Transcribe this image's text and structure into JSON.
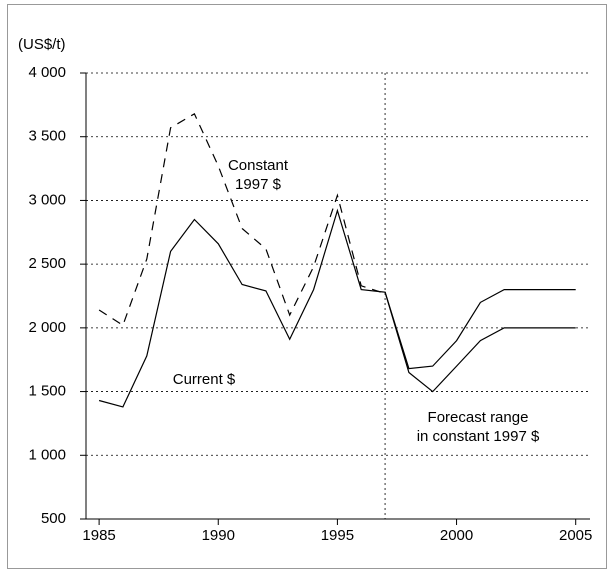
{
  "chart_data": {
    "type": "line",
    "y_unit": "(US$/t)",
    "x": [
      1985,
      1986,
      1987,
      1988,
      1989,
      1990,
      1991,
      1992,
      1993,
      1994,
      1995,
      1996,
      1997,
      1998,
      1999,
      2000,
      2001,
      2002,
      2003,
      2004,
      2005
    ],
    "series": [
      {
        "color": "#000",
        "dash": "solid",
        "values": [
          1430,
          1380,
          1780,
          2600,
          2850,
          2660,
          2340,
          2290,
          1910,
          2300,
          2920,
          2300,
          2280,
          1650,
          1500,
          1700,
          1900,
          2000,
          2000,
          2000,
          2000
        ]
      },
      {
        "color": "#000",
        "dash": "dashed",
        "values": [
          2140,
          2020,
          2540,
          3570,
          3680,
          3270,
          2780,
          2620,
          2100,
          2480,
          3040,
          2330,
          2270,
          null,
          null,
          null,
          null,
          null,
          null,
          null,
          null
        ]
      },
      {
        "color": "#000",
        "dash": "solid",
        "values": [
          null,
          null,
          null,
          null,
          null,
          null,
          null,
          null,
          null,
          null,
          null,
          null,
          2280,
          1680,
          1700,
          1900,
          2200,
          2300,
          2300,
          2300,
          2300
        ]
      }
    ],
    "annotations": [
      {
        "lines": [
          "Constant",
          "1997 $"
        ]
      },
      {
        "lines": [
          "Current $"
        ]
      },
      {
        "lines": [
          "Forecast range",
          "in constant 1997 $"
        ]
      }
    ],
    "forecast_start": 1997,
    "xlim": [
      1984.45,
      2005.6
    ],
    "ylim": [
      500,
      4000
    ],
    "xticks": [
      1985,
      1990,
      1995,
      2000,
      2005
    ],
    "yticks": [
      500,
      {
        "value": 1000,
        "label": "1 000"
      },
      {
        "value": 1500,
        "label": "1 500"
      },
      {
        "value": 2000,
        "label": "2 000"
      },
      {
        "value": 2500,
        "label": "2 500"
      },
      {
        "value": 3000,
        "label": "3 000"
      },
      {
        "value": 3500,
        "label": "3 500"
      },
      {
        "value": 4000,
        "label": "4 000"
      }
    ],
    "grid": true
  }
}
